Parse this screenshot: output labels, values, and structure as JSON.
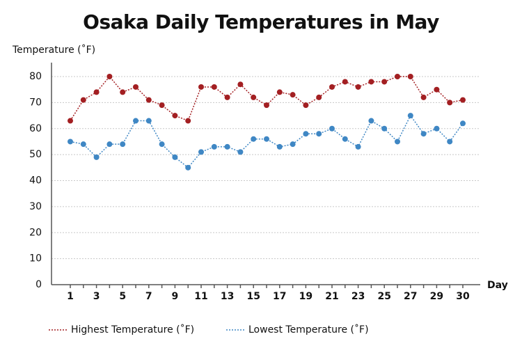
{
  "chart_data": {
    "type": "line",
    "title": "Osaka Daily Temperatures in May",
    "y_label": "Temperature (˚F)",
    "x_label": "Day",
    "categories": [
      "1",
      null,
      "3",
      null,
      "5",
      null,
      "7",
      null,
      "9",
      null,
      "11",
      null,
      "13",
      null,
      "15",
      null,
      "17",
      null,
      "19",
      null,
      "21",
      null,
      "23",
      null,
      "25",
      null,
      "27",
      null,
      "29",
      null,
      "30"
    ],
    "series": [
      {
        "name": "Highest Temperature (˚F)",
        "color": "#a31f22",
        "values": [
          63,
          71,
          74,
          80,
          74,
          76,
          71,
          69,
          65,
          63,
          76,
          76,
          72,
          77,
          72,
          69,
          74,
          73,
          69,
          72,
          76,
          78,
          76,
          78,
          78,
          80,
          80,
          72,
          75,
          70,
          71
        ]
      },
      {
        "name": "Lowest Temperature (˚F)",
        "color": "#3f87c4",
        "values": [
          55,
          54,
          49,
          54,
          54,
          63,
          63,
          54,
          49,
          45,
          51,
          53,
          53,
          51,
          56,
          56,
          53,
          54,
          58,
          58,
          60,
          56,
          53,
          63,
          60,
          55,
          65,
          58,
          60,
          55,
          62
        ]
      }
    ],
    "ylim": [
      0,
      80
    ],
    "yticks": [
      0,
      10,
      20,
      30,
      40,
      50,
      60,
      70,
      80
    ],
    "grid": true,
    "legend": "bottom"
  }
}
